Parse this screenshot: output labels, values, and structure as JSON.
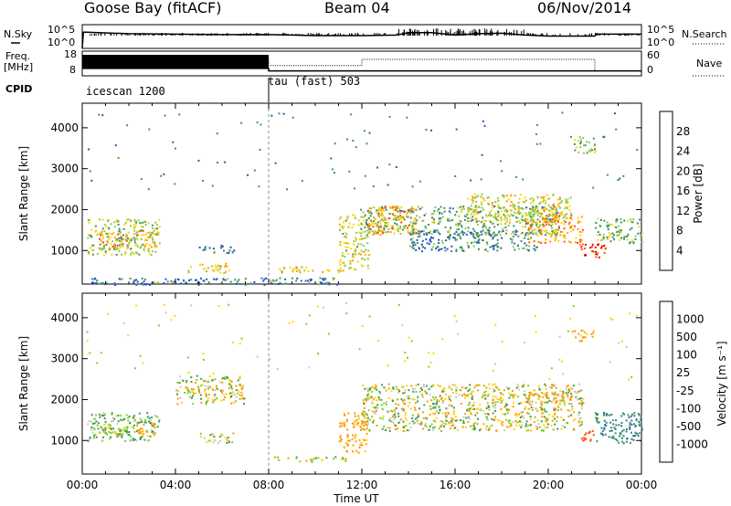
{
  "header": {
    "station": "Goose Bay (fitACF)",
    "beam": "Beam 04",
    "date": "06/Nov/2014"
  },
  "noise_panel": {
    "left_label": "N.Sky",
    "right_label": "N.Search",
    "left_ticks": [
      "10^5",
      "10^0"
    ],
    "right_ticks": [
      "10^5",
      "10^0"
    ]
  },
  "freq_panel": {
    "left_label": "Freq.",
    "left_unit": "[MHz]",
    "right_label": "Nave",
    "left_ticks": [
      "18",
      "8"
    ],
    "right_ticks": [
      "60",
      "0"
    ]
  },
  "cpid": {
    "label": "CPID",
    "modes": [
      {
        "name": "icescan 1200",
        "start_hour": 0,
        "end_hour": 8
      },
      {
        "name": "tau (fast) 503",
        "start_hour": 8,
        "end_hour": 24
      }
    ]
  },
  "x_axis": {
    "label": "Time UT",
    "ticks": [
      "00:00",
      "04:00",
      "08:00",
      "12:00",
      "16:00",
      "20:00",
      "00:00"
    ],
    "range_hours": [
      0,
      24
    ]
  },
  "y_axis": {
    "label": "Slant Range [km]",
    "ticks": [
      "1000",
      "2000",
      "3000",
      "4000"
    ],
    "range_km": [
      180,
      4600
    ]
  },
  "power_colorbar": {
    "label": "Power [dB]",
    "ticks": [
      "4",
      "8",
      "12",
      "16",
      "20",
      "24",
      "28"
    ],
    "colors": [
      "#1a33ff",
      "#2b55b8",
      "#3d8f6e",
      "#8ccc4a",
      "#ffd400",
      "#ff9a00",
      "#ff5000",
      "#e80000"
    ]
  },
  "velocity_colorbar": {
    "label": "Velocity [m s⁻¹]",
    "ticks": [
      "1000",
      "500",
      "100",
      "25",
      "-25",
      "-100",
      "-500",
      "-1000"
    ],
    "colors": [
      "#1f3fb0",
      "#2f7a8a",
      "#3a9c4a",
      "#7ed02a",
      "#c8c8c0",
      "#ffd400",
      "#ff9a00",
      "#ff5000",
      "#e00000"
    ]
  },
  "chart_data": [
    {
      "type": "line",
      "title": "N.Sky",
      "y_scale": "log",
      "ylim": [
        "10^0",
        "10^5"
      ],
      "x_hours": [
        0,
        0.05,
        0.2,
        2,
        4,
        6,
        8,
        9,
        10,
        12,
        13.5,
        14,
        15,
        16,
        17,
        18,
        19,
        20,
        21,
        22,
        22.05,
        24
      ],
      "values_log10": [
        0,
        3.4,
        3.4,
        3.1,
        3.0,
        2.9,
        2.9,
        2.8,
        2.7,
        2.7,
        2.8,
        3.3,
        3.3,
        2.8,
        3.1,
        3.2,
        2.8,
        2.6,
        2.6,
        2.6,
        3.0,
        3.0
      ]
    },
    {
      "type": "line",
      "title": "Freq. / Nave",
      "series": [
        {
          "name": "Freq.",
          "unit": "MHz",
          "x_hours": [
            0,
            8,
            8,
            24
          ],
          "values": [
            11,
            11,
            10,
            10
          ]
        },
        {
          "name": "Nave",
          "x_hours": [
            0,
            8,
            8,
            12,
            12,
            22,
            22,
            24
          ],
          "values": [
            45,
            45,
            25,
            25,
            40,
            40,
            12,
            12
          ]
        }
      ]
    },
    {
      "type": "heatmap",
      "title": "Power [dB]",
      "x_unit": "hours UT",
      "y_unit": "slant range km",
      "regions": [
        {
          "t0": 0.2,
          "t1": 3.3,
          "r0": 900,
          "r1": 1800,
          "level": 14
        },
        {
          "t0": 0.7,
          "t1": 2.0,
          "r0": 1050,
          "r1": 1450,
          "level": 22
        },
        {
          "t0": 2.3,
          "t1": 3.3,
          "r0": 1100,
          "r1": 1500,
          "level": 20
        },
        {
          "t0": 5.0,
          "t1": 6.5,
          "r0": 950,
          "r1": 1150,
          "level": 9
        },
        {
          "t0": 4.5,
          "t1": 6.3,
          "r0": 450,
          "r1": 700,
          "level": 18
        },
        {
          "t0": 8.2,
          "t1": 11.3,
          "r0": 480,
          "r1": 620,
          "level": 19
        },
        {
          "t0": 11.0,
          "t1": 12.3,
          "r0": 550,
          "r1": 1900,
          "level": 16
        },
        {
          "t0": 11.9,
          "t1": 20.5,
          "r0": 1400,
          "r1": 2100,
          "level": 12
        },
        {
          "t0": 12.2,
          "t1": 14.3,
          "r0": 1400,
          "r1": 2100,
          "level": 21
        },
        {
          "t0": 14.0,
          "t1": 19.5,
          "r0": 1000,
          "r1": 1500,
          "level": 9
        },
        {
          "t0": 16.5,
          "t1": 21.0,
          "r0": 1700,
          "r1": 2400,
          "level": 17
        },
        {
          "t0": 19.0,
          "t1": 21.5,
          "r0": 1200,
          "r1": 1900,
          "level": 22
        },
        {
          "t0": 21.3,
          "t1": 22.5,
          "r0": 850,
          "r1": 1200,
          "level": 28
        },
        {
          "t0": 22.0,
          "t1": 24.0,
          "r0": 1200,
          "r1": 1800,
          "level": 13
        },
        {
          "t0": 21.0,
          "t1": 22.0,
          "r0": 3400,
          "r1": 3800,
          "level": 14
        },
        {
          "t0": 0.2,
          "t1": 11.0,
          "r0": 180,
          "r1": 350,
          "level": 8
        }
      ]
    },
    {
      "type": "heatmap",
      "title": "Velocity [m s-1]",
      "x_unit": "hours UT",
      "y_unit": "slant range km",
      "regions": [
        {
          "t0": 0.2,
          "t1": 3.3,
          "r0": 1000,
          "r1": 1700,
          "velocity": 150
        },
        {
          "t0": 0.8,
          "t1": 2.0,
          "r0": 1150,
          "r1": 1450,
          "velocity": 60
        },
        {
          "t0": 2.3,
          "t1": 3.2,
          "r0": 1150,
          "r1": 1450,
          "velocity": -200
        },
        {
          "t0": 5.0,
          "t1": 6.5,
          "r0": 950,
          "r1": 1200,
          "velocity": 0
        },
        {
          "t0": 4.0,
          "t1": 7.0,
          "r0": 1900,
          "r1": 2600,
          "velocity": 0
        },
        {
          "t0": 8.2,
          "t1": 11.3,
          "r0": 500,
          "r1": 620,
          "velocity": 0
        },
        {
          "t0": 11.0,
          "t1": 12.2,
          "r0": 700,
          "r1": 1700,
          "velocity": -250
        },
        {
          "t0": 12.0,
          "t1": 21.5,
          "r0": 1250,
          "r1": 2400,
          "velocity": 0
        },
        {
          "t0": 19.0,
          "t1": 21.0,
          "r0": 1900,
          "r1": 2200,
          "velocity": -300
        },
        {
          "t0": 21.0,
          "t1": 22.0,
          "r0": 3450,
          "r1": 3750,
          "velocity": -200
        },
        {
          "t0": 22.0,
          "t1": 24.0,
          "r0": 950,
          "r1": 1700,
          "velocity": 600
        },
        {
          "t0": 21.3,
          "t1": 22.0,
          "r0": 1000,
          "r1": 1300,
          "velocity": -700
        }
      ]
    }
  ]
}
